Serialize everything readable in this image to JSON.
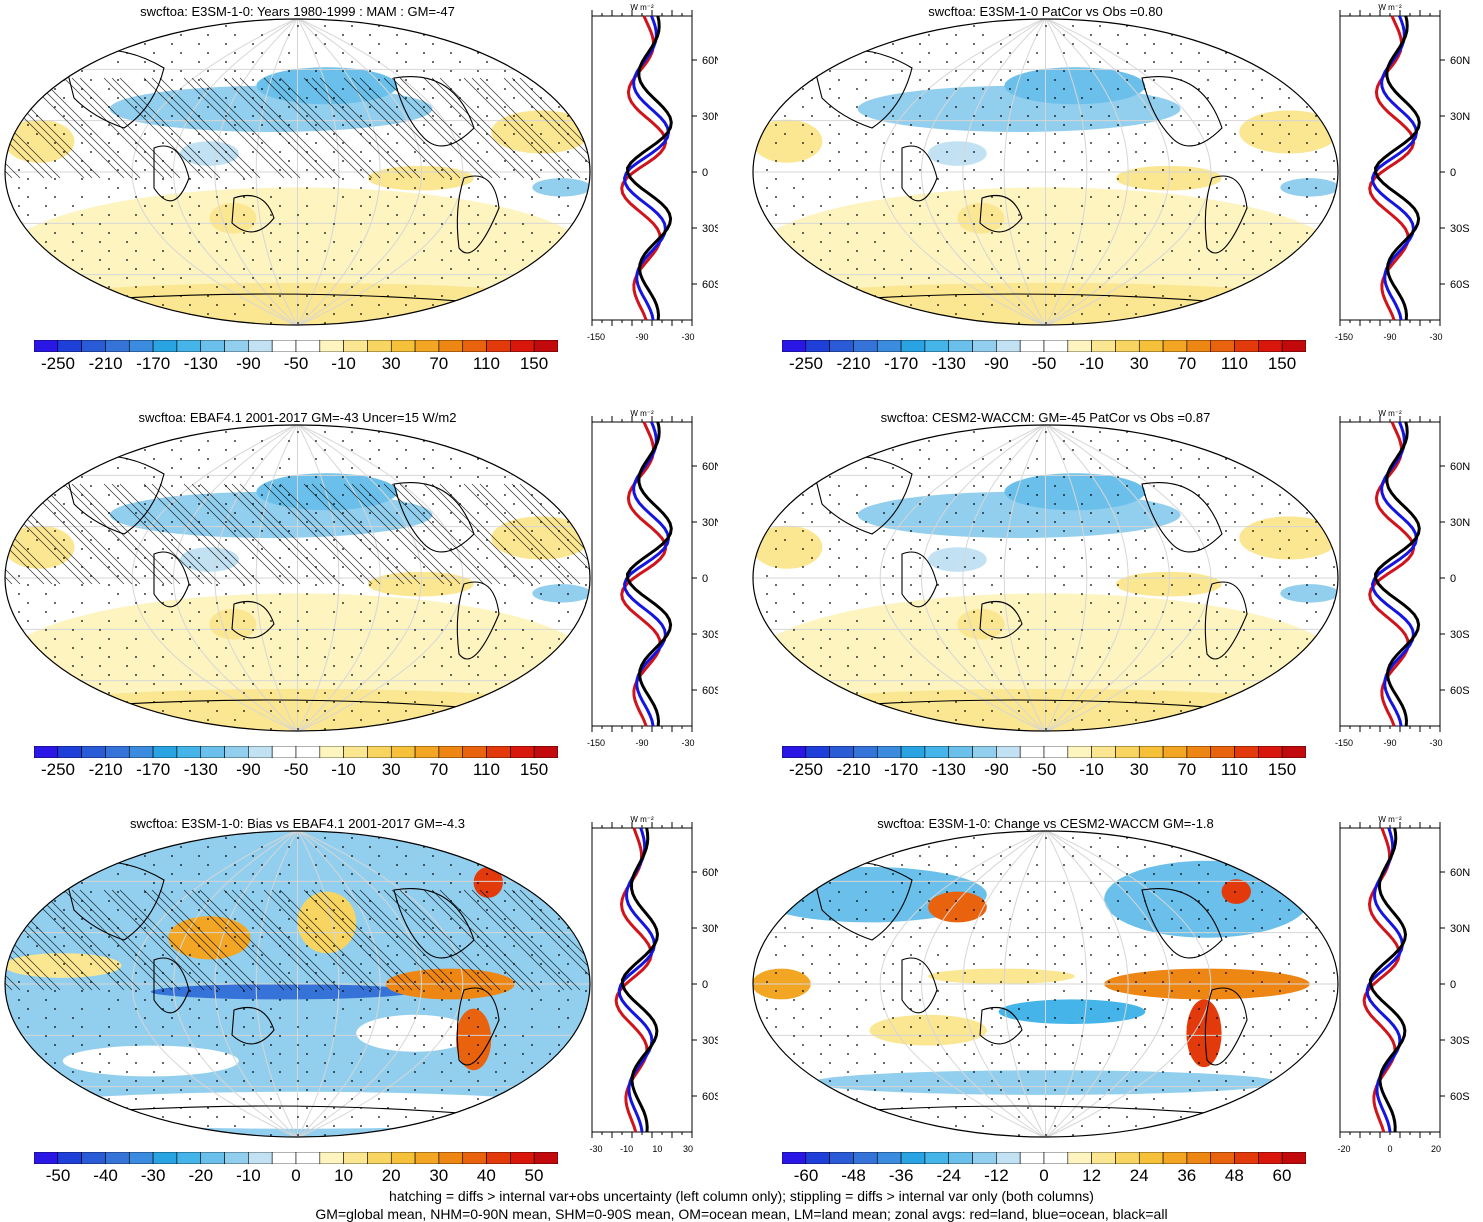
{
  "panels": [
    {
      "title": "swcftoa: E3SM-1-0: Years 1980-1999 : MAM : GM=-47",
      "style": "clim"
    },
    {
      "title": "swcftoa: E3SM-1-0 PatCor vs Obs =0.80",
      "style": "clim"
    },
    {
      "title": "swcftoa: EBAF4.1 2001-2017 GM=-43 Uncer=15 W/m2",
      "style": "clim"
    },
    {
      "title": "swcftoa: CESM2-WACCM: GM=-45 PatCor vs Obs =0.87",
      "style": "clim"
    },
    {
      "title": "swcftoa: E3SM-1-0: Bias vs EBAF4.1 2001-2017 GM=-4.3",
      "style": "diff"
    },
    {
      "title": "swcftoa: E3SM-1-0: Change vs CESM2-WACCM GM=-1.8",
      "style": "diff"
    }
  ],
  "colorbars": {
    "clim": [
      "-250",
      "-210",
      "-170",
      "-130",
      "-90",
      "-50",
      "-10",
      "30",
      "70",
      "110",
      "150"
    ],
    "bias": [
      "-50",
      "-40",
      "-30",
      "-20",
      "-10",
      "0",
      "10",
      "20",
      "30",
      "40",
      "50"
    ],
    "change": [
      "-60",
      "-48",
      "-36",
      "-24",
      "-12",
      "0",
      "12",
      "24",
      "36",
      "48",
      "60"
    ]
  },
  "colors": {
    "palette": [
      "#2b17e5",
      "#1f3fd9",
      "#2a5bd6",
      "#3673d8",
      "#3b8bdf",
      "#2aa3e3",
      "#45b4e8",
      "#6ac0ea",
      "#92cfee",
      "#c2e2f3",
      "#ffffff",
      "#ffffff",
      "#fdf4c0",
      "#fbe691",
      "#f8d460",
      "#f6c13a",
      "#f2a623",
      "#ee8614",
      "#e9620d",
      "#e33a0b",
      "#d9160b",
      "#c20a0c"
    ],
    "land": "#d0141c",
    "ocean": "#1515e0",
    "all": "#000000"
  },
  "zonal": {
    "lat_ticks": [
      "60N",
      "30N",
      "0",
      "30S",
      "60S"
    ],
    "units": "W m⁻²",
    "clim_xticks": [
      "-150",
      "-90",
      "-30"
    ],
    "bias_xticks": [
      "-30",
      "-10",
      "10",
      "30"
    ],
    "change_xticks": [
      "-20",
      "0",
      "20"
    ]
  },
  "footer": {
    "line1": "hatching = diffs > internal var+obs uncertainty (left column only); stippling = diffs > internal var only (both columns)",
    "line2": "GM=global mean, NHM=0-90N mean, SHM=0-90S mean, OM=ocean mean, LM=land mean; zonal avgs: red=land, blue=ocean, black=all"
  }
}
